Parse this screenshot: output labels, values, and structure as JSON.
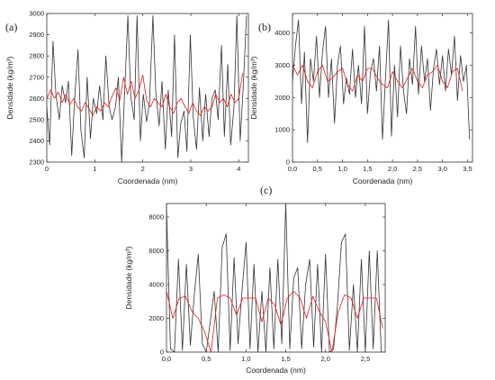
{
  "chart_data": [
    {
      "panel": "(a)",
      "type": "line",
      "xlabel": "Coordenada (nm)",
      "ylabel": "Densidade (kg/m³)",
      "xlim": [
        0,
        4.2
      ],
      "ylim": [
        2300,
        3000
      ],
      "xticks": [
        0,
        1,
        2,
        3,
        4
      ],
      "xtick_labels": [
        "0",
        "1",
        "2",
        "3",
        "4"
      ],
      "yticks": [
        2300,
        2400,
        2500,
        2600,
        2700,
        2800,
        2900,
        3000
      ],
      "ytick_labels": [
        "2300",
        "2400",
        "2500",
        "2600",
        "2700",
        "2800",
        "2900",
        "3000"
      ],
      "series": [
        {
          "color": "#333333",
          "x": [
            0.0,
            0.06,
            0.13,
            0.19,
            0.26,
            0.32,
            0.39,
            0.45,
            0.52,
            0.58,
            0.65,
            0.71,
            0.78,
            0.84,
            0.91,
            0.97,
            1.04,
            1.1,
            1.17,
            1.23,
            1.3,
            1.36,
            1.43,
            1.49,
            1.56,
            1.62,
            1.69,
            1.75,
            1.82,
            1.88,
            1.95,
            2.01,
            2.08,
            2.14,
            2.21,
            2.27,
            2.34,
            2.4,
            2.47,
            2.53,
            2.6,
            2.66,
            2.73,
            2.79,
            2.86,
            2.92,
            2.99,
            3.05,
            3.12,
            3.18,
            3.25,
            3.31,
            3.38,
            3.44,
            3.51,
            3.57,
            3.64,
            3.7,
            3.77,
            3.83,
            3.9,
            3.96,
            4.03,
            4.09,
            4.16
          ],
          "y": [
            2560,
            2380,
            2870,
            2620,
            2500,
            2660,
            2580,
            2680,
            2330,
            2600,
            2830,
            2450,
            2320,
            2700,
            2410,
            2600,
            2530,
            2660,
            2500,
            2800,
            2560,
            2500,
            2560,
            2700,
            2300,
            2620,
            2990,
            2610,
            2500,
            2990,
            2400,
            2620,
            2490,
            2580,
            2990,
            2630,
            2470,
            2680,
            2360,
            2640,
            2420,
            2900,
            2320,
            2480,
            2540,
            2350,
            2900,
            2510,
            2360,
            2650,
            2400,
            2620,
            2420,
            2600,
            2640,
            2500,
            2850,
            2420,
            2760,
            2380,
            2560,
            2990,
            2400,
            2640,
            2990
          ]
        },
        {
          "color": "#e8191c",
          "x": [
            0.0,
            0.08,
            0.16,
            0.24,
            0.32,
            0.4,
            0.48,
            0.56,
            0.64,
            0.72,
            0.8,
            0.88,
            0.96,
            1.04,
            1.12,
            1.2,
            1.28,
            1.36,
            1.44,
            1.52,
            1.6,
            1.68,
            1.76,
            1.84,
            1.92,
            2.0,
            2.08,
            2.16,
            2.24,
            2.32,
            2.4,
            2.48,
            2.56,
            2.64,
            2.72,
            2.8,
            2.88,
            2.96,
            3.04,
            3.12,
            3.2,
            3.28,
            3.36,
            3.44,
            3.52,
            3.6,
            3.68,
            3.76,
            3.84,
            3.92,
            4.0,
            4.08
          ],
          "y": [
            2600,
            2640,
            2600,
            2630,
            2580,
            2620,
            2570,
            2600,
            2560,
            2540,
            2580,
            2550,
            2520,
            2560,
            2540,
            2580,
            2560,
            2610,
            2650,
            2590,
            2700,
            2620,
            2680,
            2600,
            2640,
            2710,
            2590,
            2560,
            2600,
            2580,
            2560,
            2620,
            2560,
            2530,
            2580,
            2600,
            2560,
            2530,
            2580,
            2540,
            2520,
            2560,
            2540,
            2560,
            2620,
            2580,
            2600,
            2560,
            2620,
            2580,
            2600,
            2720
          ]
        }
      ]
    },
    {
      "panel": "(b)",
      "type": "line",
      "xlabel": "Coordenada (nm)",
      "ylabel": "Densidade (kg/m³)",
      "xlim": [
        0,
        3.6
      ],
      "ylim": [
        0,
        4600
      ],
      "xticks": [
        0,
        0.5,
        1.0,
        1.5,
        2.0,
        2.5,
        3.0,
        3.5
      ],
      "xtick_labels": [
        "0,0",
        "0,5",
        "1,0",
        "1,5",
        "2,0",
        "2,5",
        "3,0",
        "3,5"
      ],
      "yticks": [
        0,
        1000,
        2000,
        3000,
        4000
      ],
      "ytick_labels": [
        "0",
        "1000",
        "2000",
        "3000",
        "4000"
      ],
      "series": [
        {
          "color": "#333333",
          "x": [
            0.0,
            0.06,
            0.12,
            0.18,
            0.24,
            0.3,
            0.36,
            0.42,
            0.48,
            0.54,
            0.6,
            0.66,
            0.72,
            0.78,
            0.84,
            0.9,
            0.96,
            1.02,
            1.08,
            1.14,
            1.2,
            1.26,
            1.32,
            1.38,
            1.44,
            1.5,
            1.56,
            1.62,
            1.68,
            1.74,
            1.8,
            1.86,
            1.92,
            1.98,
            2.04,
            2.1,
            2.16,
            2.22,
            2.28,
            2.34,
            2.4,
            2.46,
            2.52,
            2.58,
            2.64,
            2.7,
            2.76,
            2.82,
            2.88,
            2.94,
            3.0,
            3.06,
            3.12,
            3.18,
            3.24,
            3.3,
            3.36,
            3.42,
            3.48,
            3.54
          ],
          "y": [
            2500,
            3600,
            4400,
            1800,
            3400,
            600,
            3200,
            2500,
            3900,
            2000,
            3400,
            4200,
            2000,
            3200,
            1200,
            3000,
            3600,
            1800,
            2600,
            2100,
            3500,
            2000,
            3000,
            1800,
            4200,
            1500,
            2800,
            3200,
            2200,
            3600,
            700,
            2600,
            4400,
            800,
            3000,
            1400,
            3600,
            2200,
            1500,
            3200,
            2400,
            4200,
            2100,
            3600,
            2500,
            3200,
            1600,
            2900,
            3500,
            2400,
            3300,
            2200,
            3500,
            2700,
            3900,
            1900,
            3300,
            2500,
            3000,
            700
          ]
        },
        {
          "color": "#e8191c",
          "x": [
            0.0,
            0.1,
            0.2,
            0.3,
            0.4,
            0.5,
            0.6,
            0.7,
            0.8,
            0.9,
            1.0,
            1.1,
            1.2,
            1.3,
            1.4,
            1.5,
            1.6,
            1.7,
            1.8,
            1.9,
            2.0,
            2.1,
            2.2,
            2.3,
            2.4,
            2.5,
            2.6,
            2.7,
            2.8,
            2.9,
            3.0,
            3.1,
            3.2,
            3.3,
            3.4
          ],
          "y": [
            3000,
            2700,
            3000,
            2500,
            2300,
            2800,
            3000,
            2500,
            2600,
            2800,
            2900,
            2400,
            2200,
            2700,
            2500,
            2900,
            2900,
            2600,
            2400,
            2300,
            2800,
            2500,
            2300,
            2600,
            2900,
            2500,
            2300,
            2700,
            2800,
            3000,
            2500,
            2300,
            2800,
            2900,
            2200
          ]
        }
      ]
    },
    {
      "panel": "(c)",
      "type": "line",
      "xlabel": "Coordenada (nm)",
      "ylabel": "Densidade (kg/m³)",
      "xlim": [
        0,
        2.75
      ],
      "ylim": [
        0,
        8800
      ],
      "xticks": [
        0,
        0.5,
        1.0,
        1.5,
        2.0,
        2.5
      ],
      "xtick_labels": [
        "0,0",
        "0,5",
        "1,0",
        "1,5",
        "2,0",
        "2,5"
      ],
      "yticks": [
        0,
        2000,
        4000,
        6000,
        8000
      ],
      "ytick_labels": [
        "0",
        "2000",
        "4000",
        "6000",
        "8000"
      ],
      "series": [
        {
          "color": "#333333",
          "x": [
            0.0,
            0.05,
            0.1,
            0.15,
            0.2,
            0.25,
            0.3,
            0.35,
            0.4,
            0.45,
            0.5,
            0.55,
            0.6,
            0.65,
            0.7,
            0.75,
            0.8,
            0.85,
            0.9,
            0.95,
            1.0,
            1.05,
            1.1,
            1.15,
            1.2,
            1.25,
            1.3,
            1.35,
            1.4,
            1.45,
            1.5,
            1.55,
            1.6,
            1.65,
            1.7,
            1.75,
            1.8,
            1.85,
            1.9,
            1.95,
            2.0,
            2.05,
            2.1,
            2.15,
            2.2,
            2.25,
            2.3,
            2.35,
            2.4,
            2.45,
            2.5,
            2.55,
            2.6,
            2.65,
            2.7
          ],
          "y": [
            8600,
            200,
            0,
            5500,
            100,
            5200,
            400,
            3400,
            5800,
            500,
            0,
            1800,
            3600,
            0,
            6200,
            7000,
            100,
            5600,
            500,
            3600,
            6500,
            200,
            5200,
            0,
            3600,
            0,
            5000,
            200,
            5500,
            500,
            8800,
            200,
            4400,
            5000,
            200,
            4000,
            5500,
            300,
            5200,
            0,
            5800,
            0,
            200,
            2800,
            6500,
            7000,
            100,
            4000,
            0,
            5500,
            0,
            6000,
            200,
            6000,
            0
          ]
        },
        {
          "color": "#e8191c",
          "x": [
            0.0,
            0.08,
            0.16,
            0.24,
            0.32,
            0.4,
            0.48,
            0.56,
            0.64,
            0.72,
            0.8,
            0.88,
            0.96,
            1.04,
            1.12,
            1.2,
            1.28,
            1.36,
            1.44,
            1.52,
            1.6,
            1.68,
            1.76,
            1.84,
            1.92,
            2.0,
            2.08,
            2.16,
            2.24,
            2.32,
            2.4,
            2.48,
            2.56,
            2.64,
            2.72
          ],
          "y": [
            3600,
            2000,
            3200,
            3300,
            2400,
            2000,
            1200,
            0,
            3200,
            3400,
            3200,
            2200,
            3200,
            3200,
            3200,
            1800,
            3200,
            2800,
            1600,
            3200,
            3600,
            3200,
            2000,
            3300,
            2400,
            1800,
            0,
            2400,
            3400,
            3200,
            2000,
            3200,
            3200,
            3200,
            1400
          ]
        }
      ]
    }
  ]
}
